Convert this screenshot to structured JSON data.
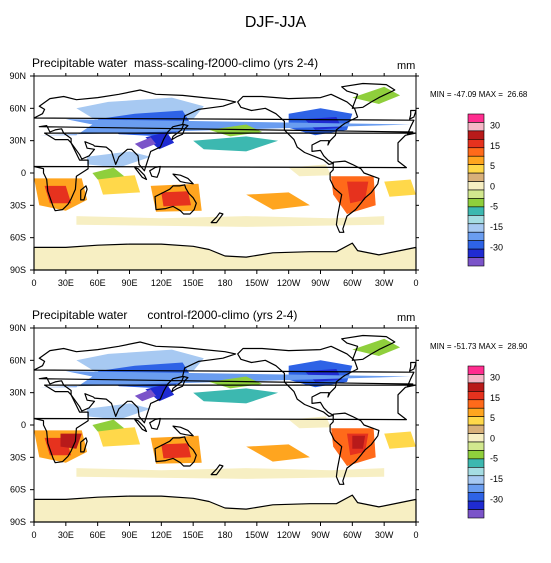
{
  "figure_title": "DJF-JJA",
  "colors": {
    "levels": [
      "#7b54c9",
      "#1f2bd2",
      "#2e63e6",
      "#6a9df0",
      "#a7c9f2",
      "#a5dde3",
      "#3cb8b0",
      "#8fcf3c",
      "#d2e88e",
      "#f7efc3",
      "#d8b07a",
      "#ffd84a",
      "#ffa51f",
      "#ff6a1a",
      "#e6321e",
      "#b81a1a",
      "#f5b7c7",
      "#ff2d8f"
    ],
    "land": "#d8b07a",
    "ocean": "#a5dde3"
  },
  "chart_data": [
    {
      "type": "heatmap",
      "left_title": "Precipitable water  mass-scaling-f2000-climo (yrs 2-4)",
      "right_title": "mm",
      "stats": "MIN = -47.09 MAX =  26.68",
      "xtick_labels": [
        "0",
        "30E",
        "60E",
        "90E",
        "120E",
        "150E",
        "180",
        "150W",
        "120W",
        "90W",
        "60W",
        "30W",
        "0"
      ],
      "ytick_labels": [
        "90N",
        "60N",
        "30N",
        "0",
        "30S",
        "60S",
        "90S"
      ],
      "colorbar_labels": [
        "30",
        "15",
        "5",
        "0",
        "-5",
        "-15",
        "-30"
      ],
      "xlim": [
        0,
        360
      ],
      "ylim": [
        -90,
        90
      ],
      "min": -47.09,
      "max": 26.68
    },
    {
      "type": "heatmap",
      "left_title": "Precipitable water      control-f2000-climo (yrs 2-4)",
      "right_title": "mm",
      "stats": "MIN = -51.73 MAX =  28.90",
      "xtick_labels": [
        "0",
        "30E",
        "60E",
        "90E",
        "120E",
        "150E",
        "180",
        "150W",
        "120W",
        "90W",
        "60W",
        "30W",
        "0"
      ],
      "ytick_labels": [
        "90N",
        "60N",
        "30N",
        "0",
        "30S",
        "60S",
        "90S"
      ],
      "colorbar_labels": [
        "30",
        "15",
        "5",
        "0",
        "-5",
        "-15",
        "-30"
      ],
      "xlim": [
        0,
        360
      ],
      "ylim": [
        -90,
        90
      ],
      "min": -51.73,
      "max": 28.9
    }
  ]
}
